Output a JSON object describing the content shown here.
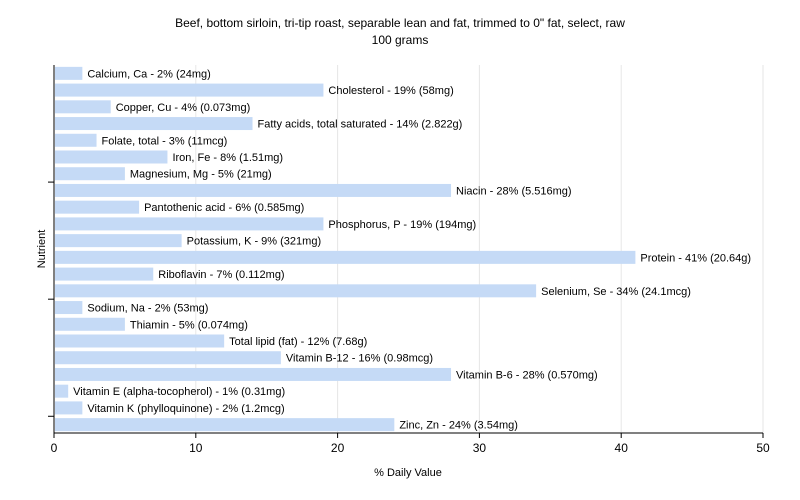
{
  "chart_data": {
    "type": "bar",
    "orientation": "horizontal",
    "title": "Beef, bottom sirloin, tri-tip roast, separable lean and fat, trimmed to 0\" fat, select, raw",
    "subtitle": "100 grams",
    "xlabel": "% Daily Value",
    "ylabel": "Nutrient",
    "xlim": [
      0,
      50
    ],
    "xticks": [
      "0",
      "10",
      "20",
      "30",
      "40",
      "50"
    ],
    "grid": true,
    "bar_color": "#c5daf6",
    "categories": [
      "Calcium, Ca",
      "Cholesterol",
      "Copper, Cu",
      "Fatty acids, total saturated",
      "Folate, total",
      "Iron, Fe",
      "Magnesium, Mg",
      "Niacin",
      "Pantothenic acid",
      "Phosphorus, P",
      "Potassium, K",
      "Protein",
      "Riboflavin",
      "Selenium, Se",
      "Sodium, Na",
      "Thiamin",
      "Total lipid (fat)",
      "Vitamin B-12",
      "Vitamin B-6",
      "Vitamin E (alpha-tocopherol)",
      "Vitamin K (phylloquinone)",
      "Zinc, Zn"
    ],
    "values": [
      2,
      19,
      4,
      14,
      3,
      8,
      5,
      28,
      6,
      19,
      9,
      41,
      7,
      34,
      2,
      5,
      12,
      16,
      28,
      1,
      2,
      24
    ],
    "labels": [
      "Calcium, Ca - 2% (24mg)",
      "Cholesterol - 19% (58mg)",
      "Copper, Cu - 4% (0.073mg)",
      "Fatty acids, total saturated - 14% (2.822g)",
      "Folate, total - 3% (11mcg)",
      "Iron, Fe - 8% (1.51mg)",
      "Magnesium, Mg - 5% (21mg)",
      "Niacin - 28% (5.516mg)",
      "Pantothenic acid - 6% (0.585mg)",
      "Phosphorus, P - 19% (194mg)",
      "Potassium, K - 9% (321mg)",
      "Protein - 41% (20.64g)",
      "Riboflavin - 7% (0.112mg)",
      "Selenium, Se - 34% (24.1mcg)",
      "Sodium, Na - 2% (53mg)",
      "Thiamin - 5% (0.074mg)",
      "Total lipid (fat) - 12% (7.68g)",
      "Vitamin B-12 - 16% (0.98mcg)",
      "Vitamin B-6 - 28% (0.570mg)",
      "Vitamin E (alpha-tocopherol) - 1% (0.31mg)",
      "Vitamin K (phylloquinone) - 2% (1.2mcg)",
      "Zinc, Zn - 24% (3.54mg)"
    ]
  }
}
